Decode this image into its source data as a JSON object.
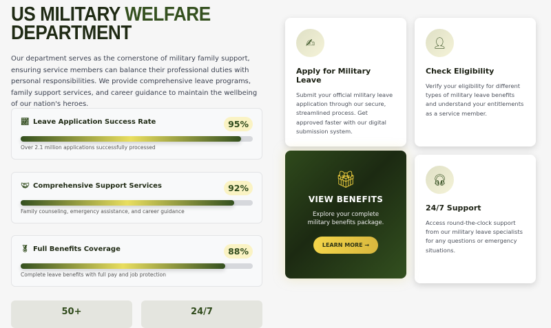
{
  "header": {
    "title_part1": "US MILITARY ",
    "title_accent": "WELFARE",
    "title_part2": "DEPARTMENT"
  },
  "intro": "Our department serves as the cornerstone of military family support, ensuring service members can balance their professional duties with personal responsibilities. We provide comprehensive leave programs, family support services, and career guidance to maintain the wellbeing of our nation's heroes.",
  "stats": [
    {
      "icon": "chart-line-icon",
      "title": "Leave Application Success Rate",
      "percent": "95%",
      "value": 95,
      "desc": "Over 2.1 million applications successfully processed"
    },
    {
      "icon": "handshake-icon",
      "title": "Comprehensive Support Services",
      "percent": "92%",
      "value": 92,
      "desc": "Family counseling, emergency assistance, and career guidance"
    },
    {
      "icon": "medal-icon",
      "title": "Full Benefits Coverage",
      "percent": "88%",
      "value": 88,
      "desc": "Complete leave benefits with full pay and job protection"
    }
  ],
  "mini_stats": [
    "50+",
    "24/7"
  ],
  "cards": [
    {
      "icon": "file-signature-icon",
      "title": "Apply for Military Leave",
      "text": "Submit your official military leave application through our secure, streamlined process. Get approved faster with our digital submission system."
    },
    {
      "icon": "user-check-icon",
      "title": "Check Eligibility",
      "text": "Verify your eligibility for different types of military leave benefits and understand your entitlements as a service member."
    },
    {
      "icon": "headset-icon",
      "title": "24/7 Support",
      "text": "Access round-the-clock support from our military leave specialists for any questions or emergency situations."
    }
  ],
  "featured": {
    "icon": "gift-icon",
    "title": "VIEW BENEFITS",
    "text": "Explore your complete military benefits package.",
    "button": "LEARN MORE →"
  },
  "colors": {
    "primary": "#2f4a1b",
    "accent": "#f1cf3f",
    "background": "#f6f6f6"
  }
}
